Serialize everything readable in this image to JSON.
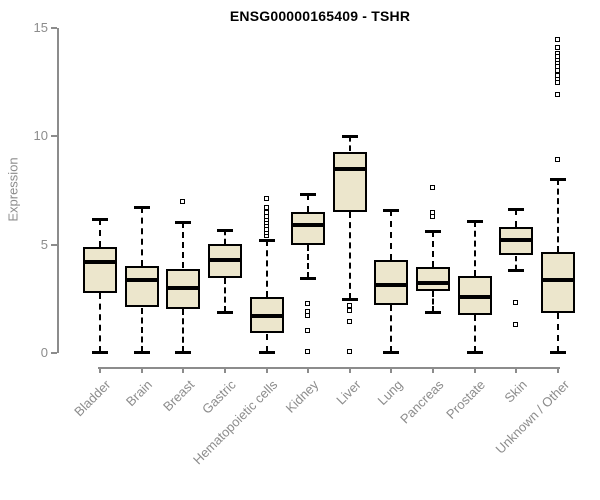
{
  "chart_data": {
    "type": "boxplot",
    "title": "ENSG00000165409 - TSHR",
    "xlabel": "",
    "ylabel": "Expression",
    "ylim": [
      0,
      15
    ],
    "yticks": [
      0,
      5,
      10,
      15
    ],
    "grid": false,
    "legend": "none",
    "axis_color": "#8c8c8c",
    "box_fill_color": "#ece6cc",
    "box_line_color": "#000000",
    "categories": [
      "Bladder",
      "Brain",
      "Breast",
      "Gastric",
      "Hematopoietic cells",
      "Kidney",
      "Liver",
      "Lung",
      "Pancreas",
      "Prostate",
      "Skin",
      "Unknown / Other"
    ],
    "series": [
      {
        "category": "Bladder",
        "whisker_low": 0.05,
        "q1": 2.75,
        "median": 4.2,
        "q3": 4.9,
        "whisker_high": 6.2,
        "outliers": []
      },
      {
        "category": "Brain",
        "whisker_low": 0.05,
        "q1": 2.1,
        "median": 3.35,
        "q3": 4.0,
        "whisker_high": 6.75,
        "outliers": []
      },
      {
        "category": "Breast",
        "whisker_low": 0.05,
        "q1": 2.05,
        "median": 3.0,
        "q3": 3.9,
        "whisker_high": 6.05,
        "outliers": [
          6.95
        ]
      },
      {
        "category": "Gastric",
        "whisker_low": 1.9,
        "q1": 3.45,
        "median": 4.3,
        "q3": 5.05,
        "whisker_high": 5.7,
        "outliers": []
      },
      {
        "category": "Hematopoietic cells",
        "whisker_low": 0.05,
        "q1": 0.9,
        "median": 1.7,
        "q3": 2.6,
        "whisker_high": 5.2,
        "outliers": [
          5.4,
          5.55,
          5.7,
          5.85,
          6.0,
          6.15,
          6.3,
          6.45,
          6.7,
          7.1
        ]
      },
      {
        "category": "Kidney",
        "whisker_low": 3.45,
        "q1": 5.0,
        "median": 5.9,
        "q3": 6.5,
        "whisker_high": 7.35,
        "outliers": [
          2.25,
          1.9,
          1.7,
          1.0,
          0.05
        ]
      },
      {
        "category": "Liver",
        "whisker_low": 2.5,
        "q1": 6.5,
        "median": 8.5,
        "q3": 9.3,
        "whisker_high": 10.0,
        "outliers": [
          2.15,
          1.95,
          1.45,
          0.05
        ]
      },
      {
        "category": "Lung",
        "whisker_low": 0.05,
        "q1": 2.2,
        "median": 3.15,
        "q3": 4.3,
        "whisker_high": 6.6,
        "outliers": []
      },
      {
        "category": "Pancreas",
        "whisker_low": 1.9,
        "q1": 2.85,
        "median": 3.25,
        "q3": 3.95,
        "whisker_high": 5.65,
        "outliers": [
          7.6,
          6.45,
          6.3
        ]
      },
      {
        "category": "Prostate",
        "whisker_low": 0.05,
        "q1": 1.75,
        "median": 2.6,
        "q3": 3.55,
        "whisker_high": 6.1,
        "outliers": []
      },
      {
        "category": "Skin",
        "whisker_low": 3.85,
        "q1": 4.5,
        "median": 5.2,
        "q3": 5.8,
        "whisker_high": 6.65,
        "outliers": [
          2.3,
          1.3
        ]
      },
      {
        "category": "Unknown / Other",
        "whisker_low": 0.05,
        "q1": 1.85,
        "median": 3.35,
        "q3": 4.65,
        "whisker_high": 8.05,
        "outliers": [
          14.45,
          14.1,
          13.8,
          13.65,
          13.5,
          13.35,
          13.2,
          13.0,
          12.8,
          12.6,
          12.45,
          11.9,
          8.9
        ]
      }
    ]
  }
}
